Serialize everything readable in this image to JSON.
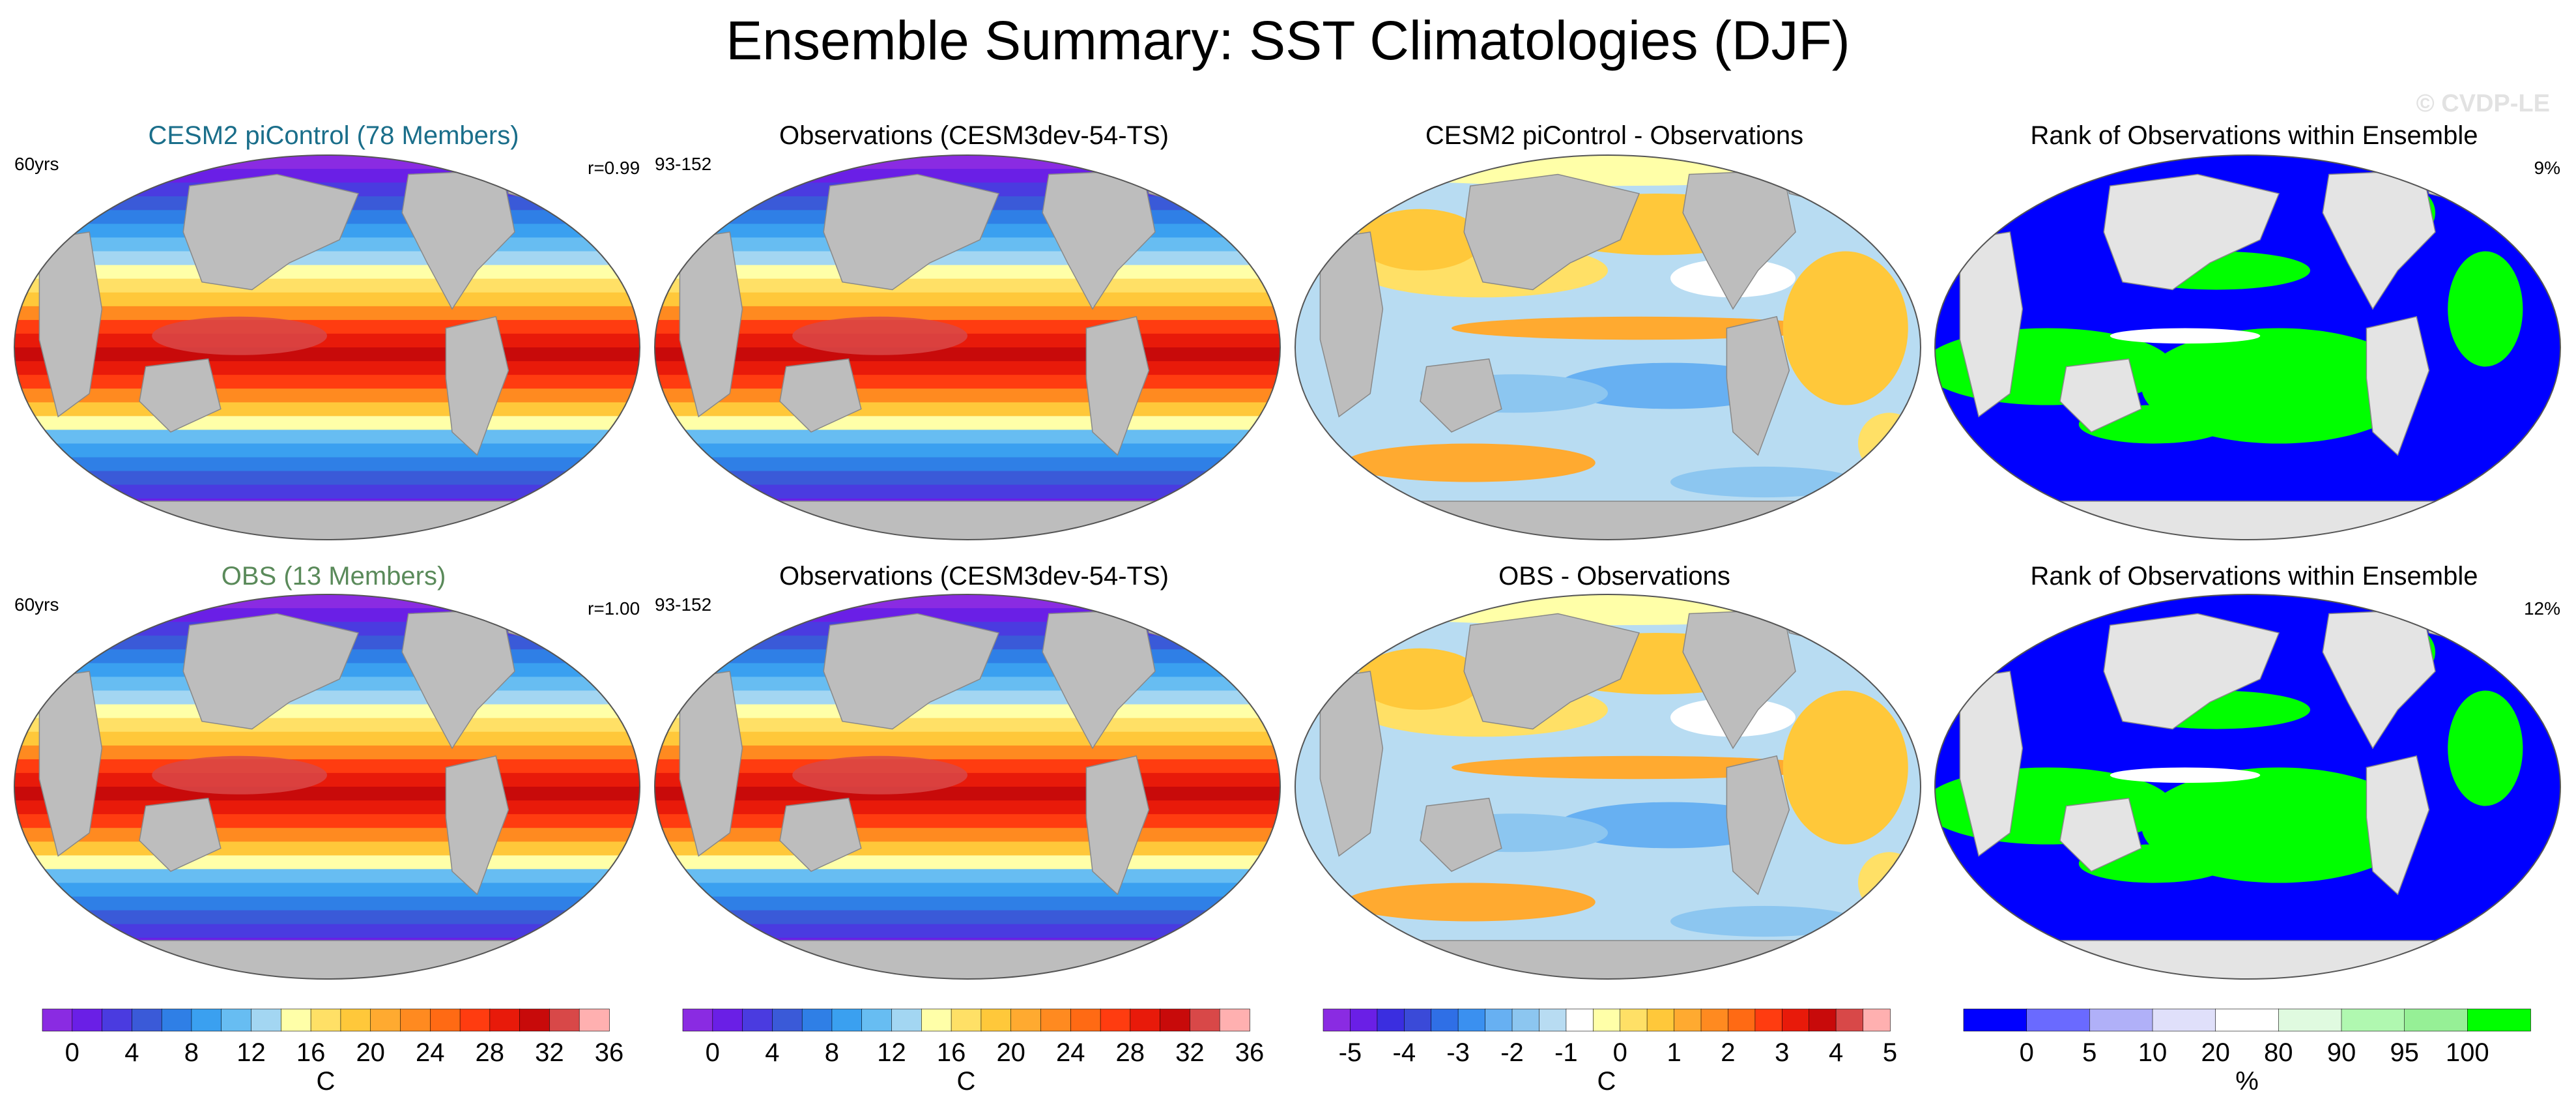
{
  "title": "Ensemble Summary: SST Climatologies (DJF)",
  "watermark": "© CVDP-LE",
  "colors": {
    "land": "#bdbdbd",
    "land_light": "#e4e4e4",
    "ensemble_title": "#1a6e8a",
    "obs_title": "#5a8a5a",
    "rank_low": "#0000ff",
    "rank_high": "#00ff00"
  },
  "panels": [
    {
      "title": "CESM2 piControl (78 Members)",
      "left_note": "60yrs",
      "right_note": "r=0.99",
      "kind": "sst"
    },
    {
      "title": "Observations (CESM3dev-54-TS)",
      "left_note": "93-152",
      "right_note": "",
      "kind": "sst"
    },
    {
      "title": "CESM2 piControl - Observations",
      "left_note": "",
      "right_note": "",
      "kind": "diff"
    },
    {
      "title": "Rank of Observations within Ensemble",
      "left_note": "",
      "right_note": "9%",
      "kind": "rank"
    },
    {
      "title": "OBS (13 Members)",
      "left_note": "60yrs",
      "right_note": "r=1.00",
      "kind": "sst"
    },
    {
      "title": "Observations (CESM3dev-54-TS)",
      "left_note": "93-152",
      "right_note": "",
      "kind": "sst"
    },
    {
      "title": "OBS - Observations",
      "left_note": "",
      "right_note": "",
      "kind": "diff"
    },
    {
      "title": "Rank of Observations within Ensemble",
      "left_note": "",
      "right_note": "12%",
      "kind": "rank"
    }
  ],
  "chart_data": [
    {
      "type": "heatmap",
      "name": "sst_colorbar",
      "unit": "C",
      "levels": [
        0,
        2,
        4,
        6,
        8,
        10,
        12,
        14,
        16,
        18,
        20,
        22,
        24,
        26,
        28,
        30,
        32,
        34,
        36
      ],
      "tick_labels": [
        "0",
        "4",
        "8",
        "12",
        "16",
        "20",
        "24",
        "28",
        "32",
        "36"
      ],
      "tick_values": [
        0,
        4,
        8,
        12,
        16,
        20,
        24,
        28,
        32,
        36
      ],
      "colors": [
        "#8a2be2",
        "#6a1fe6",
        "#4a3be0",
        "#3a5ad8",
        "#2f7fe6",
        "#3aa0f0",
        "#67bdf2",
        "#a3d6f2",
        "#ffffa8",
        "#ffe066",
        "#ffc83a",
        "#ffaa30",
        "#ff8a20",
        "#ff6a14",
        "#ff3c10",
        "#e81a0a",
        "#c80a0a",
        "#d84848",
        "#ffb0b0"
      ]
    },
    {
      "type": "heatmap",
      "name": "diff_colorbar",
      "unit": "C",
      "levels": [
        -5,
        -4.5,
        -4,
        -3.5,
        -3,
        -2.5,
        -2,
        -1.5,
        -1,
        -0.5,
        0,
        0.5,
        1,
        1.5,
        2,
        2.5,
        3,
        3.5,
        4,
        4.5,
        5
      ],
      "tick_labels": [
        "-5",
        "-4",
        "-3",
        "-2",
        "-1",
        "0",
        "1",
        "2",
        "3",
        "4",
        "5"
      ],
      "tick_values": [
        -5,
        -4,
        -3,
        -2,
        -1,
        0,
        1,
        2,
        3,
        4,
        5
      ],
      "colors": [
        "#8a2be2",
        "#6a1fe6",
        "#3a2ee0",
        "#3a4ad8",
        "#2f6fe6",
        "#3a90f0",
        "#67b0f2",
        "#8cc6f0",
        "#b8dcf2",
        "#ffffff",
        "#ffffa8",
        "#ffe066",
        "#ffc83a",
        "#ffaa30",
        "#ff8a20",
        "#ff6a14",
        "#ff3c10",
        "#e81a0a",
        "#c80a0a",
        "#d84848",
        "#ffb0b0"
      ]
    },
    {
      "type": "heatmap",
      "name": "rank_colorbar",
      "unit": "%",
      "levels": [
        0,
        5,
        10,
        20,
        80,
        90,
        95,
        100
      ],
      "tick_labels": [
        "0",
        "5",
        "10",
        "20",
        "80",
        "90",
        "95",
        "100"
      ],
      "colors": [
        "#0000ff",
        "#6a6aff",
        "#b0b0f8",
        "#e0e0fa",
        "#ffffff",
        "#e0fae0",
        "#b0f8b0",
        "#96f096",
        "#00ff00"
      ]
    }
  ]
}
